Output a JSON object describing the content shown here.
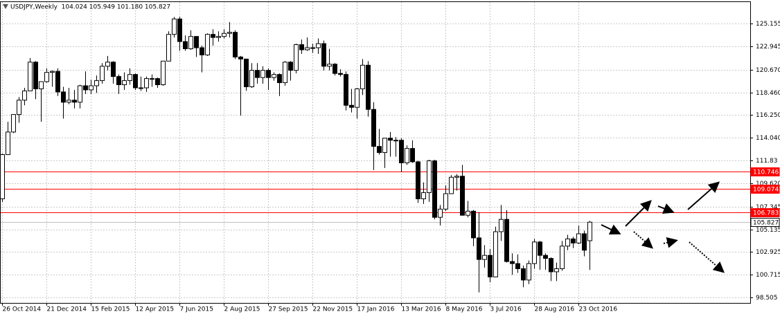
{
  "chart_data": {
    "type": "candlestick",
    "title": "USDJPY,Weekly  104.024 105.949 101.180 105.827",
    "open": [
      108.1,
      112.4,
      114.6,
      116.3,
      117.7,
      118.6,
      121.4,
      118.8,
      119.5,
      120.4,
      120.5,
      118.5,
      117.5,
      117.7,
      117.5,
      119.1,
      118.7,
      119.1,
      119.6,
      121.0,
      121.4,
      120.0,
      119.2,
      119.6,
      120.2,
      118.9,
      118.9,
      119.8,
      119.8,
      119.2,
      121.5,
      124.1,
      125.6,
      123.4,
      122.7,
      123.9,
      122.8,
      122.1,
      124.1,
      123.8,
      123.9,
      124.2,
      124.3,
      121.9,
      121.7,
      119.0,
      120.6,
      119.9,
      120.6,
      119.9,
      120.2,
      119.4,
      121.4,
      120.6,
      123.1,
      122.6,
      122.8,
      122.8,
      123.2,
      121.0,
      121.2,
      120.3,
      120.2,
      117.2,
      117.0,
      118.8,
      121.1,
      116.8,
      113.2,
      112.6,
      114.0,
      113.8,
      113.8,
      111.6,
      113.0,
      111.7,
      108.1,
      108.7,
      111.8,
      106.3,
      107.1,
      108.6,
      110.2,
      110.3,
      106.5,
      106.9,
      104.3,
      102.2,
      102.6,
      100.5,
      104.9,
      106.1,
      102.0,
      101.8,
      101.3,
      100.2,
      101.8,
      103.9,
      102.6,
      102.3,
      101.0,
      101.3,
      103.5,
      104.2,
      103.8,
      104.7,
      104.024
    ],
    "high": [
      112.5,
      115.6,
      116.1,
      118.0,
      118.9,
      121.8,
      121.5,
      119.5,
      120.8,
      120.6,
      120.8,
      119.0,
      118.9,
      118.7,
      119.2,
      120.5,
      119.7,
      120.1,
      121.3,
      122.0,
      121.5,
      120.2,
      120.4,
      120.8,
      120.3,
      120.0,
      120.0,
      120.2,
      119.9,
      121.5,
      124.4,
      125.8,
      125.8,
      124.0,
      124.5,
      123.9,
      123.0,
      124.2,
      124.6,
      124.4,
      124.6,
      125.3,
      124.5,
      122.0,
      121.7,
      121.3,
      121.3,
      121.0,
      120.8,
      120.4,
      120.3,
      121.5,
      121.5,
      123.2,
      123.6,
      123.8,
      123.2,
      123.7,
      123.5,
      122.7,
      121.3,
      120.7,
      120.5,
      118.8,
      118.9,
      121.7,
      121.5,
      117.5,
      114.9,
      114.0,
      114.6,
      114.1,
      114.0,
      113.3,
      113.8,
      111.8,
      109.7,
      111.9,
      111.9,
      107.5,
      109.4,
      110.4,
      110.5,
      111.4,
      107.9,
      107.0,
      106.8,
      103.6,
      103.2,
      105.4,
      107.5,
      107.0,
      102.8,
      102.7,
      101.6,
      102.1,
      104.2,
      104.0,
      102.8,
      102.4,
      101.9,
      104.0,
      104.6,
      104.4,
      105.5,
      105.0,
      105.949
    ],
    "low": [
      107.8,
      112.4,
      114.5,
      115.5,
      117.2,
      118.6,
      117.8,
      115.6,
      119.4,
      119.0,
      118.1,
      115.9,
      117.3,
      116.9,
      116.9,
      118.3,
      118.3,
      118.4,
      119.3,
      120.6,
      119.3,
      118.3,
      118.7,
      119.2,
      118.7,
      118.6,
      118.5,
      119.0,
      118.9,
      119.1,
      121.5,
      123.8,
      122.5,
      122.5,
      122.6,
      121.9,
      120.4,
      122.0,
      123.0,
      123.4,
      123.7,
      123.8,
      121.7,
      116.2,
      118.6,
      118.9,
      119.3,
      119.3,
      118.7,
      119.6,
      118.1,
      119.1,
      119.6,
      120.3,
      122.2,
      122.5,
      122.3,
      122.2,
      120.6,
      120.6,
      120.1,
      120.0,
      116.7,
      116.5,
      115.9,
      118.2,
      116.1,
      110.9,
      112.4,
      111.1,
      112.2,
      112.2,
      110.7,
      111.4,
      111.6,
      107.7,
      107.6,
      107.8,
      106.1,
      105.5,
      106.9,
      108.6,
      108.9,
      106.5,
      106.3,
      103.5,
      99.0,
      101.4,
      99.99,
      100.5,
      104.0,
      101.9,
      100.7,
      100.9,
      99.5,
      99.8,
      101.3,
      101.2,
      101.2,
      100.1,
      100.1,
      101.1,
      103.1,
      103.3,
      103.7,
      102.5,
      101.18
    ],
    "close": [
      112.4,
      114.6,
      116.3,
      117.7,
      118.6,
      121.4,
      118.8,
      119.5,
      120.4,
      120.5,
      118.5,
      117.5,
      117.7,
      117.5,
      119.1,
      118.7,
      119.1,
      119.6,
      121.0,
      121.4,
      120.0,
      119.2,
      119.6,
      120.2,
      118.9,
      118.9,
      119.8,
      119.8,
      119.2,
      121.5,
      124.1,
      125.6,
      123.4,
      122.7,
      123.9,
      122.8,
      122.1,
      124.1,
      123.8,
      123.9,
      124.2,
      124.3,
      121.9,
      121.7,
      119.0,
      120.6,
      119.9,
      120.6,
      119.9,
      120.2,
      119.4,
      121.4,
      120.6,
      123.1,
      122.6,
      122.8,
      122.8,
      123.2,
      121.0,
      121.2,
      120.3,
      120.2,
      117.2,
      117.0,
      118.8,
      121.1,
      116.8,
      113.2,
      112.6,
      114.0,
      113.8,
      113.8,
      111.6,
      113.0,
      111.7,
      108.1,
      108.7,
      111.8,
      106.3,
      107.1,
      108.6,
      110.2,
      110.3,
      106.5,
      106.9,
      104.3,
      102.2,
      102.6,
      100.5,
      104.9,
      106.1,
      102.0,
      101.8,
      101.3,
      100.2,
      101.8,
      103.9,
      102.6,
      102.3,
      101.0,
      101.3,
      103.5,
      104.2,
      103.8,
      104.7,
      103.1,
      105.827
    ],
    "xlim": [
      0,
      134.5
    ],
    "xticks": [
      {
        "value": 0,
        "label": "26 Oct 2014"
      },
      {
        "value": 8,
        "label": "21 Dec 2014"
      },
      {
        "value": 16,
        "label": "15 Feb 2015"
      },
      {
        "value": 24,
        "label": "12 Apr 2015"
      },
      {
        "value": 32,
        "label": "7 Jun 2015"
      },
      {
        "value": 40,
        "label": "2 Aug 2015"
      },
      {
        "value": 48,
        "label": "27 Sep 2015"
      },
      {
        "value": 56,
        "label": "22 Nov 2015"
      },
      {
        "value": 64,
        "label": "17 Jan 2016"
      },
      {
        "value": 72,
        "label": "13 Mar 2016"
      },
      {
        "value": 80,
        "label": "8 May 2016"
      },
      {
        "value": 88,
        "label": "3 Jul 2016"
      },
      {
        "value": 96,
        "label": "28 Aug 2016"
      },
      {
        "value": 104,
        "label": "23 Oct 2016"
      }
    ],
    "ylim": [
      97.97,
      127.31
    ],
    "yticks": [
      125.155,
      122.945,
      {
        "value": 120.67,
        "label": "120.670"
      },
      {
        "value": 118.46,
        "label": "118.460"
      },
      {
        "value": 116.25,
        "label": "116.250"
      },
      {
        "value": 114.04,
        "label": "114.040"
      },
      111.83,
      {
        "value": 109.62,
        "label": "109.620"
      },
      107.345,
      105.135,
      102.925,
      100.715,
      98.505
    ],
    "grid": true,
    "up_color": "#ffffff",
    "down_color": "#000000",
    "levels": [
      {
        "value": 110.746,
        "color": "#ff0000"
      },
      {
        "value": 109.074,
        "color": "#ff0000"
      },
      {
        "value": 106.783,
        "color": "#ff0000"
      }
    ],
    "price_line": {
      "value": 105.827,
      "color": "#c0c0c0"
    }
  }
}
